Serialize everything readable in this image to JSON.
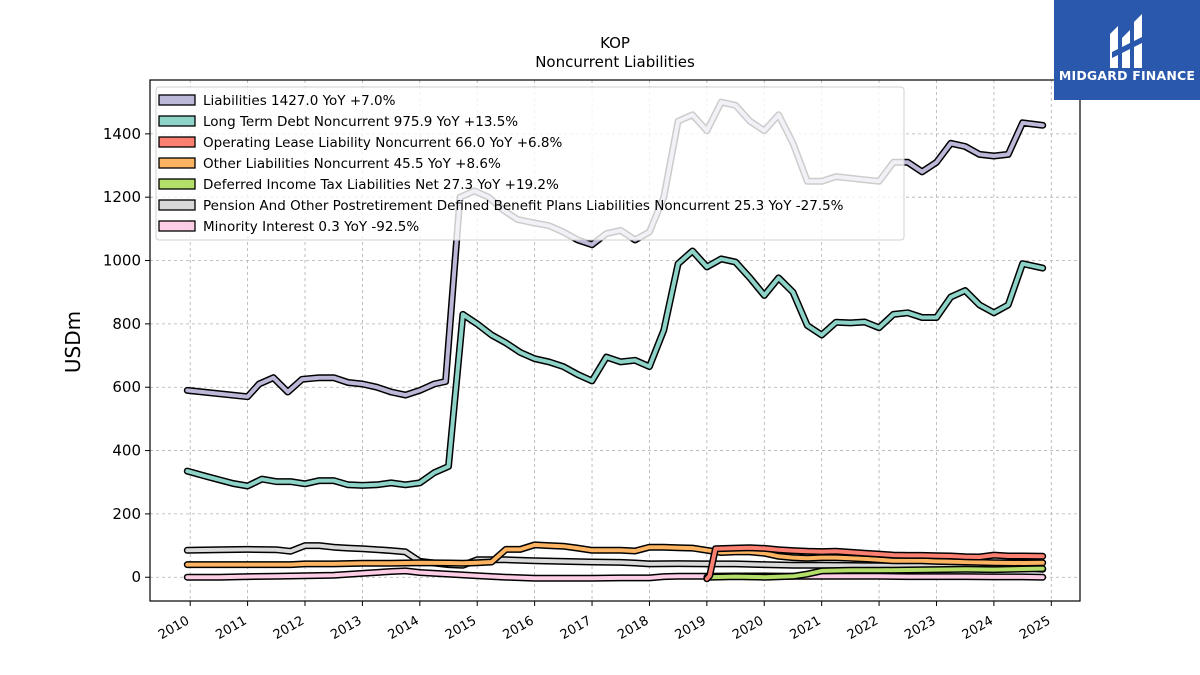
{
  "title": {
    "line1": "KOP",
    "line2": "Noncurrent  Liabilities"
  },
  "logo": {
    "text": "MIDGARD FINANCE",
    "bg_color": "#2a58ac"
  },
  "chart_data": {
    "type": "line",
    "title": "KOP\nNoncurrent  Liabilities",
    "xlabel": "",
    "ylabel": "USDm",
    "xlim": [
      2009.3,
      2025.5
    ],
    "ylim": [
      -75,
      1570
    ],
    "grid": true,
    "legend_position": "top-left",
    "x_ticks": [
      2010,
      2011,
      2012,
      2013,
      2014,
      2015,
      2016,
      2017,
      2018,
      2019,
      2020,
      2021,
      2022,
      2023,
      2024,
      2025
    ],
    "y_ticks": [
      0,
      200,
      400,
      600,
      800,
      1000,
      1200,
      1400
    ],
    "series": [
      {
        "name": "Liabilities  1427.0 YoY +7.0%",
        "color": "#bcb8d8",
        "points": [
          [
            2009.95,
            590
          ],
          [
            2011.0,
            570
          ],
          [
            2011.2,
            610
          ],
          [
            2011.45,
            630
          ],
          [
            2011.7,
            585
          ],
          [
            2011.95,
            625
          ],
          [
            2012.25,
            630
          ],
          [
            2012.5,
            630
          ],
          [
            2012.75,
            615
          ],
          [
            2013.0,
            610
          ],
          [
            2013.25,
            600
          ],
          [
            2013.5,
            585
          ],
          [
            2013.75,
            575
          ],
          [
            2014.0,
            590
          ],
          [
            2014.25,
            610
          ],
          [
            2014.45,
            618
          ],
          [
            2014.7,
            1200
          ],
          [
            2014.95,
            1220
          ],
          [
            2015.2,
            1200
          ],
          [
            2015.45,
            1160
          ],
          [
            2015.7,
            1130
          ],
          [
            2015.95,
            1120
          ],
          [
            2016.25,
            1110
          ],
          [
            2016.5,
            1090
          ],
          [
            2016.75,
            1065
          ],
          [
            2017.0,
            1050
          ],
          [
            2017.25,
            1085
          ],
          [
            2017.5,
            1095
          ],
          [
            2017.75,
            1065
          ],
          [
            2018.0,
            1090
          ],
          [
            2018.25,
            1200
          ],
          [
            2018.5,
            1440
          ],
          [
            2018.75,
            1460
          ],
          [
            2019.0,
            1410
          ],
          [
            2019.25,
            1500
          ],
          [
            2019.5,
            1490
          ],
          [
            2019.75,
            1440
          ],
          [
            2020.0,
            1410
          ],
          [
            2020.25,
            1460
          ],
          [
            2020.5,
            1370
          ],
          [
            2020.75,
            1250
          ],
          [
            2021.0,
            1250
          ],
          [
            2021.25,
            1265
          ],
          [
            2021.5,
            1260
          ],
          [
            2021.75,
            1255
          ],
          [
            2022.0,
            1250
          ],
          [
            2022.25,
            1310
          ],
          [
            2022.5,
            1310
          ],
          [
            2022.75,
            1280
          ],
          [
            2023.0,
            1310
          ],
          [
            2023.25,
            1370
          ],
          [
            2023.5,
            1360
          ],
          [
            2023.75,
            1335
          ],
          [
            2024.0,
            1330
          ],
          [
            2024.25,
            1335
          ],
          [
            2024.5,
            1435
          ],
          [
            2024.85,
            1427
          ]
        ]
      },
      {
        "name": "Long Term Debt Noncurrent  975.9 YoY +13.5%",
        "color": "#8dd3c7",
        "points": [
          [
            2009.95,
            335
          ],
          [
            2010.25,
            320
          ],
          [
            2010.5,
            308
          ],
          [
            2010.75,
            296
          ],
          [
            2011.0,
            288
          ],
          [
            2011.25,
            310
          ],
          [
            2011.5,
            302
          ],
          [
            2011.75,
            302
          ],
          [
            2012.0,
            295
          ],
          [
            2012.25,
            305
          ],
          [
            2012.5,
            305
          ],
          [
            2012.75,
            292
          ],
          [
            2013.0,
            290
          ],
          [
            2013.25,
            292
          ],
          [
            2013.5,
            298
          ],
          [
            2013.75,
            292
          ],
          [
            2014.0,
            298
          ],
          [
            2014.25,
            330
          ],
          [
            2014.5,
            350
          ],
          [
            2014.75,
            830
          ],
          [
            2015.0,
            800
          ],
          [
            2015.25,
            765
          ],
          [
            2015.5,
            740
          ],
          [
            2015.75,
            710
          ],
          [
            2016.0,
            690
          ],
          [
            2016.25,
            680
          ],
          [
            2016.5,
            665
          ],
          [
            2016.75,
            640
          ],
          [
            2017.0,
            620
          ],
          [
            2017.25,
            695
          ],
          [
            2017.5,
            680
          ],
          [
            2017.75,
            685
          ],
          [
            2018.0,
            665
          ],
          [
            2018.25,
            780
          ],
          [
            2018.5,
            990
          ],
          [
            2018.75,
            1030
          ],
          [
            2019.0,
            980
          ],
          [
            2019.25,
            1005
          ],
          [
            2019.5,
            995
          ],
          [
            2019.75,
            945
          ],
          [
            2020.0,
            890
          ],
          [
            2020.25,
            945
          ],
          [
            2020.5,
            900
          ],
          [
            2020.75,
            795
          ],
          [
            2021.0,
            765
          ],
          [
            2021.25,
            805
          ],
          [
            2021.5,
            803
          ],
          [
            2021.75,
            806
          ],
          [
            2022.0,
            788
          ],
          [
            2022.25,
            830
          ],
          [
            2022.5,
            835
          ],
          [
            2022.75,
            820
          ],
          [
            2023.0,
            820
          ],
          [
            2023.25,
            885
          ],
          [
            2023.5,
            905
          ],
          [
            2023.75,
            860
          ],
          [
            2024.0,
            835
          ],
          [
            2024.25,
            860
          ],
          [
            2024.5,
            990
          ],
          [
            2024.85,
            976
          ]
        ]
      },
      {
        "name": "Operating Lease Liability Noncurrent  66.0 YoY +6.8%",
        "color": "#fb8072",
        "points": [
          [
            2019.0,
            -5
          ],
          [
            2019.05,
            5
          ],
          [
            2019.15,
            90
          ],
          [
            2019.5,
            92
          ],
          [
            2019.75,
            93
          ],
          [
            2020.0,
            91
          ],
          [
            2020.25,
            87
          ],
          [
            2020.5,
            84
          ],
          [
            2020.75,
            82
          ],
          [
            2021.0,
            81
          ],
          [
            2021.25,
            82
          ],
          [
            2021.5,
            79
          ],
          [
            2021.75,
            76
          ],
          [
            2022.0,
            73
          ],
          [
            2022.25,
            70
          ],
          [
            2022.5,
            69
          ],
          [
            2022.75,
            69
          ],
          [
            2023.0,
            68
          ],
          [
            2023.25,
            67
          ],
          [
            2023.5,
            65
          ],
          [
            2023.75,
            64
          ],
          [
            2024.0,
            70
          ],
          [
            2024.25,
            67
          ],
          [
            2024.5,
            67
          ],
          [
            2024.85,
            66
          ]
        ]
      },
      {
        "name": "Other Liabilities Noncurrent  45.5 YoY +8.6%",
        "color": "#fdb462",
        "points": [
          [
            2009.95,
            40
          ],
          [
            2010.5,
            40
          ],
          [
            2011.0,
            40
          ],
          [
            2011.75,
            40
          ],
          [
            2012.0,
            42
          ],
          [
            2012.5,
            42
          ],
          [
            2013.0,
            44
          ],
          [
            2013.5,
            44
          ],
          [
            2014.0,
            46
          ],
          [
            2014.5,
            45
          ],
          [
            2014.75,
            44
          ],
          [
            2015.0,
            46
          ],
          [
            2015.25,
            48
          ],
          [
            2015.5,
            88
          ],
          [
            2015.75,
            88
          ],
          [
            2016.0,
            102
          ],
          [
            2016.25,
            100
          ],
          [
            2016.5,
            98
          ],
          [
            2016.75,
            92
          ],
          [
            2017.0,
            85
          ],
          [
            2017.25,
            85
          ],
          [
            2017.5,
            85
          ],
          [
            2017.75,
            83
          ],
          [
            2018.0,
            95
          ],
          [
            2018.25,
            95
          ],
          [
            2018.5,
            93
          ],
          [
            2018.75,
            92
          ],
          [
            2019.0,
            85
          ],
          [
            2019.25,
            78
          ],
          [
            2019.5,
            80
          ],
          [
            2019.75,
            80
          ],
          [
            2020.0,
            76
          ],
          [
            2020.25,
            66
          ],
          [
            2020.5,
            62
          ],
          [
            2020.75,
            60
          ],
          [
            2021.0,
            62
          ],
          [
            2021.25,
            62
          ],
          [
            2021.5,
            60
          ],
          [
            2021.75,
            58
          ],
          [
            2022.0,
            55
          ],
          [
            2022.25,
            52
          ],
          [
            2022.5,
            52
          ],
          [
            2022.75,
            52
          ],
          [
            2023.0,
            50
          ],
          [
            2023.5,
            48
          ],
          [
            2024.0,
            46
          ],
          [
            2024.5,
            45
          ],
          [
            2024.85,
            45.5
          ]
        ]
      },
      {
        "name": "Deferred Income Tax Liabilities Net  27.3 YoY +19.2%",
        "color": "#b3de69",
        "points": [
          [
            2019.0,
            0
          ],
          [
            2019.5,
            2
          ],
          [
            2020.0,
            0
          ],
          [
            2020.5,
            3
          ],
          [
            2020.75,
            10
          ],
          [
            2021.0,
            20
          ],
          [
            2021.5,
            22
          ],
          [
            2022.0,
            22
          ],
          [
            2022.5,
            23
          ],
          [
            2023.0,
            24
          ],
          [
            2023.5,
            25
          ],
          [
            2024.0,
            24
          ],
          [
            2024.5,
            26
          ],
          [
            2024.85,
            27.3
          ]
        ]
      },
      {
        "name": "Pension And Other Postretirement Defined Benefit Plans Liabilities Noncurrent  25.3 YoY -27.5%",
        "color": "#d9d9d9",
        "points": [
          [
            2009.95,
            85
          ],
          [
            2010.5,
            87
          ],
          [
            2011.0,
            88
          ],
          [
            2011.5,
            87
          ],
          [
            2011.75,
            82
          ],
          [
            2012.0,
            100
          ],
          [
            2012.25,
            100
          ],
          [
            2012.5,
            95
          ],
          [
            2012.75,
            92
          ],
          [
            2013.0,
            90
          ],
          [
            2013.5,
            84
          ],
          [
            2013.75,
            80
          ],
          [
            2014.0,
            50
          ],
          [
            2014.5,
            40
          ],
          [
            2014.75,
            38
          ],
          [
            2015.0,
            55
          ],
          [
            2015.5,
            55
          ],
          [
            2016.0,
            52
          ],
          [
            2016.5,
            50
          ],
          [
            2017.0,
            48
          ],
          [
            2017.5,
            47
          ],
          [
            2017.75,
            45
          ],
          [
            2018.0,
            42
          ],
          [
            2018.5,
            43
          ],
          [
            2019.0,
            42
          ],
          [
            2019.5,
            42
          ],
          [
            2020.0,
            40
          ],
          [
            2020.5,
            38
          ],
          [
            2021.0,
            38
          ],
          [
            2021.5,
            37
          ],
          [
            2022.0,
            36
          ],
          [
            2022.5,
            36
          ],
          [
            2023.0,
            35
          ],
          [
            2023.5,
            34
          ],
          [
            2024.0,
            33
          ],
          [
            2024.5,
            30
          ],
          [
            2024.85,
            25.3
          ]
        ]
      },
      {
        "name": "Minority Interest  0.3 YoY -92.5%",
        "color": "#fccde5",
        "points": [
          [
            2009.95,
            0
          ],
          [
            2010.5,
            0
          ],
          [
            2011.0,
            2
          ],
          [
            2011.5,
            3
          ],
          [
            2012.0,
            5
          ],
          [
            2012.5,
            6
          ],
          [
            2013.0,
            12
          ],
          [
            2013.5,
            18
          ],
          [
            2013.75,
            20
          ],
          [
            2014.0,
            15
          ],
          [
            2014.5,
            10
          ],
          [
            2015.0,
            5
          ],
          [
            2015.5,
            0
          ],
          [
            2016.0,
            -3
          ],
          [
            2016.5,
            -3
          ],
          [
            2017.0,
            -3
          ],
          [
            2017.5,
            -2
          ],
          [
            2017.75,
            -2
          ],
          [
            2018.0,
            -2
          ],
          [
            2018.25,
            2
          ],
          [
            2018.5,
            3
          ],
          [
            2019.0,
            3
          ],
          [
            2019.5,
            4
          ],
          [
            2020.0,
            4
          ],
          [
            2020.5,
            3
          ],
          [
            2021.0,
            3
          ],
          [
            2021.5,
            3
          ],
          [
            2022.0,
            3
          ],
          [
            2022.5,
            2
          ],
          [
            2023.0,
            2
          ],
          [
            2023.5,
            2
          ],
          [
            2024.0,
            1
          ],
          [
            2024.5,
            1
          ],
          [
            2024.85,
            0.3
          ]
        ]
      }
    ]
  }
}
